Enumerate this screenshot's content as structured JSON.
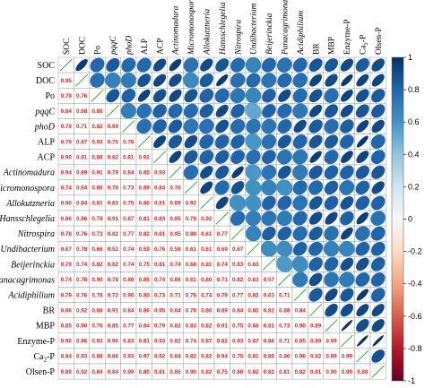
{
  "chart_data": {
    "type": "heatmap",
    "variables": [
      {
        "label": "SOC",
        "italic": false,
        "sub": ""
      },
      {
        "label": "DOC",
        "italic": false,
        "sub": ""
      },
      {
        "label": "Po",
        "italic": false,
        "sub": ""
      },
      {
        "label": "pqqC",
        "italic": true,
        "sub": ""
      },
      {
        "label": "phoD",
        "italic": true,
        "sub": ""
      },
      {
        "label": "ALP",
        "italic": false,
        "sub": ""
      },
      {
        "label": "ACP",
        "italic": false,
        "sub": ""
      },
      {
        "label": "Actinomadura",
        "italic": true,
        "sub": ""
      },
      {
        "label": "Micromonospora",
        "italic": true,
        "sub": ""
      },
      {
        "label": "Allokutzneria",
        "italic": true,
        "sub": ""
      },
      {
        "label": "Hansschlegelia",
        "italic": true,
        "sub": ""
      },
      {
        "label": "Nitrospira",
        "italic": true,
        "sub": ""
      },
      {
        "label": "Undibacterium",
        "italic": true,
        "sub": ""
      },
      {
        "label": "Beijerinckia",
        "italic": true,
        "sub": ""
      },
      {
        "label": "Panacagrimonas",
        "italic": true,
        "sub": ""
      },
      {
        "label": "Acidiphilium",
        "italic": true,
        "sub": ""
      },
      {
        "label": "BR",
        "italic": false,
        "sub": ""
      },
      {
        "label": "MBP",
        "italic": false,
        "sub": ""
      },
      {
        "label": "Enzyme-P",
        "italic": false,
        "sub": ""
      },
      {
        "label": "Ca-P",
        "italic": false,
        "sub": "2"
      },
      {
        "label": "Olsen-P",
        "italic": false,
        "sub": ""
      }
    ],
    "coefficients": [
      [],
      [
        "0.95"
      ],
      [
        "0.79",
        "0.76"
      ],
      [
        "0.84",
        "0.68",
        "0.86"
      ],
      [
        "0.79",
        "0.71",
        "0.82",
        "0.69"
      ],
      [
        "0.79",
        "0.87",
        "0.93",
        "0.75",
        "0.76"
      ],
      [
        "0.90",
        "0.91",
        "0.88",
        "0.82",
        "0.81",
        "0.92"
      ],
      [
        "0.94",
        "0.89",
        "0.91",
        "0.79",
        "0.84",
        "0.85",
        "0.93"
      ],
      [
        "0.74",
        "0.64",
        "0.86",
        "0.78",
        "0.73",
        "0.89",
        "0.84",
        "0.76"
      ],
      [
        "0.90",
        "0.84",
        "0.81",
        "0.83",
        "0.75",
        "0.80",
        "0.81",
        "0.89",
        "0.92"
      ],
      [
        "0.86",
        "0.96",
        "0.78",
        "0.91",
        "0.87",
        "0.81",
        "0.83",
        "0.85",
        "0.78",
        "0.92"
      ],
      [
        "0.78",
        "0.76",
        "0.73",
        "0.82",
        "0.77",
        "0.82",
        "0.81",
        "0.95",
        "0.88",
        "0.61",
        "0.77"
      ],
      [
        "0.67",
        "0.78",
        "0.66",
        "0.52",
        "0.74",
        "0.59",
        "0.76",
        "0.58",
        "0.61",
        "0.61",
        "0.69",
        "0.67"
      ],
      [
        "0.79",
        "0.74",
        "0.82",
        "0.82",
        "0.74",
        "0.75",
        "0.81",
        "0.74",
        "0.68",
        "0.81",
        "0.74",
        "0.83",
        "0.63"
      ],
      [
        "0.74",
        "0.78",
        "0.90",
        "0.78",
        "0.80",
        "0.85",
        "0.74",
        "0.86",
        "0.61",
        "0.80",
        "0.71",
        "0.82",
        "0.63",
        "0.57"
      ],
      [
        "0.79",
        "0.76",
        "0.78",
        "0.72",
        "0.90",
        "0.80",
        "0.73",
        "0.71",
        "0.78",
        "0.74",
        "0.79",
        "0.77",
        "0.82",
        "0.63",
        "0.71"
      ],
      [
        "0.86",
        "0.92",
        "0.88",
        "0.91",
        "0.84",
        "0.86",
        "0.95",
        "0.84",
        "0.78",
        "0.86",
        "0.89",
        "0.84",
        "0.80",
        "0.82",
        "0.88",
        "0.84"
      ],
      [
        "0.85",
        "0.90",
        "0.76",
        "0.85",
        "0.77",
        "0.84",
        "0.79",
        "0.82",
        "0.83",
        "0.82",
        "0.91",
        "0.75",
        "0.68",
        "0.81",
        "0.73",
        "0.90",
        "0.89"
      ],
      [
        "0.90",
        "0.96",
        "0.93",
        "0.90",
        "0.83",
        "0.81",
        "0.93",
        "0.82",
        "0.74",
        "0.87",
        "0.82",
        "0.93",
        "0.67",
        "0.88",
        "0.71",
        "0.85",
        "0.89",
        "0.99"
      ],
      [
        "0.84",
        "0.93",
        "0.88",
        "0.86",
        "0.93",
        "0.97",
        "0.92",
        "0.84",
        "0.82",
        "0.82",
        "0.94",
        "0.75",
        "0.81",
        "0.88",
        "0.80",
        "0.96",
        "0.92",
        "0.89",
        "0.99"
      ],
      [
        "0.89",
        "0.92",
        "0.84",
        "0.84",
        "0.90",
        "0.80",
        "0.81",
        "0.85",
        "0.90",
        "0.82",
        "0.75",
        "0.80",
        "0.82",
        "0.82",
        "0.81",
        "0.82",
        "0.91",
        "0.90",
        "0.99",
        "0.88"
      ]
    ],
    "colorbar": {
      "ticks": [
        "1",
        "0.8",
        "0.6",
        "0.4",
        "0.2",
        "0",
        "-0.2",
        "-0.4",
        "-0.6",
        "-0.8",
        "-1"
      ],
      "range": [
        -1,
        1
      ],
      "colors": [
        "#67001f",
        "#b2182b",
        "#d6604d",
        "#f4a582",
        "#fddbc7",
        "#f7f7f7",
        "#d1e5f0",
        "#92c5de",
        "#4393c3",
        "#2166ac",
        "#053061"
      ]
    },
    "colors": {
      "coefficient_text": "#e8201f",
      "diagonal_line": "#2ca02c",
      "grid": "#8c8c8c"
    }
  }
}
